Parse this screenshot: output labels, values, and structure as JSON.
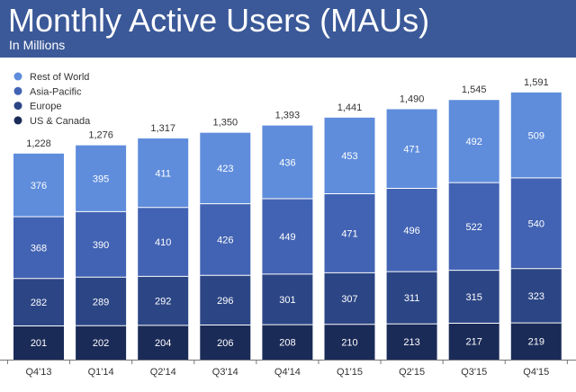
{
  "header": {
    "title": "Monthly Active Users (MAUs)",
    "subtitle": "In Millions"
  },
  "colors": {
    "header_bg": "#3b5998",
    "rest_of_world": "#5f8ddc",
    "asia_pacific": "#4263b3",
    "europe": "#2c4685",
    "us_canada": "#1b2b58",
    "axis": "#777777",
    "text": "#333333"
  },
  "chart_data": {
    "type": "bar",
    "stacked": true,
    "title": "Monthly Active Users (MAUs)",
    "subtitle": "In Millions",
    "categories": [
      "Q4'13",
      "Q1'14",
      "Q2'14",
      "Q3'14",
      "Q4'14",
      "Q1'15",
      "Q2'15",
      "Q3'15",
      "Q4'15"
    ],
    "series": [
      {
        "name": "US & Canada",
        "color": "#1b2b58",
        "values": [
          201,
          202,
          204,
          206,
          208,
          210,
          213,
          217,
          219
        ]
      },
      {
        "name": "Europe",
        "color": "#2c4685",
        "values": [
          282,
          289,
          292,
          296,
          301,
          307,
          311,
          315,
          323
        ]
      },
      {
        "name": "Asia-Pacific",
        "color": "#4263b3",
        "values": [
          368,
          390,
          410,
          426,
          449,
          471,
          496,
          522,
          540
        ]
      },
      {
        "name": "Rest of World",
        "color": "#5f8ddc",
        "values": [
          376,
          395,
          411,
          423,
          436,
          453,
          471,
          492,
          509
        ]
      }
    ],
    "totals": [
      "1,228",
      "1,276",
      "1,317",
      "1,350",
      "1,393",
      "1,441",
      "1,490",
      "1,545",
      "1,591"
    ],
    "legend_order": [
      "Rest of World",
      "Asia-Pacific",
      "Europe",
      "US & Canada"
    ],
    "legend_position": "top-left",
    "xlabel": "",
    "ylabel": "",
    "ylim": [
      0,
      1700
    ],
    "grid": false
  }
}
